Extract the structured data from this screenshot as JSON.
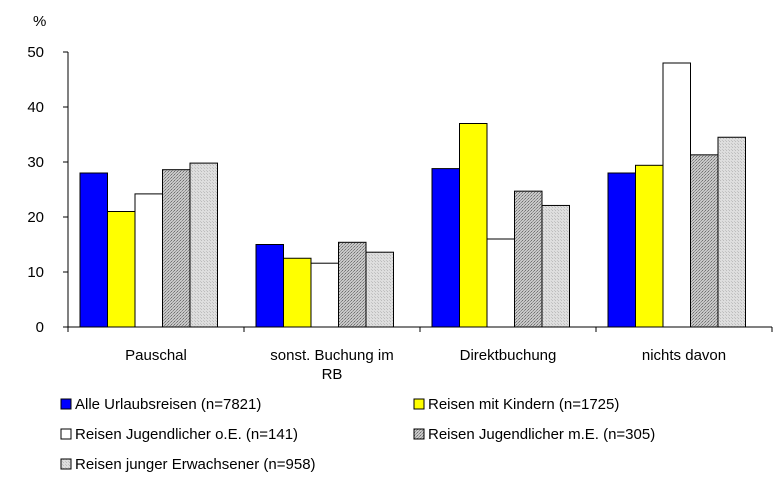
{
  "chart_data": {
    "type": "bar",
    "title": "",
    "xlabel": "",
    "ylabel": "%",
    "ylim": [
      0,
      50
    ],
    "yticks": [
      0,
      10,
      20,
      30,
      40,
      50
    ],
    "grid": false,
    "legend_position": "bottom",
    "categories": [
      [
        "Pauschal"
      ],
      [
        "sonst. Buchung im",
        "RB"
      ],
      [
        "Direktbuchung"
      ],
      [
        "nichts davon"
      ]
    ],
    "series": [
      {
        "name": "Alle Urlaubsreisen (n=7821)",
        "values": [
          28.0,
          15.0,
          28.8,
          28.0
        ],
        "color": "#0000ff",
        "pattern": "solid"
      },
      {
        "name": "Reisen mit Kindern (n=1725)",
        "values": [
          21.0,
          12.5,
          37.0,
          29.4
        ],
        "color": "#ffff00",
        "pattern": "solid"
      },
      {
        "name": "Reisen Jugendlicher o.E. (n=141)",
        "values": [
          24.2,
          11.6,
          16.0,
          48.0
        ],
        "color": "#ffffff",
        "pattern": "solid"
      },
      {
        "name": "Reisen Jugendlicher m.E. (n=305)",
        "values": [
          28.6,
          15.4,
          24.7,
          31.3
        ],
        "color": "#b0b0b0",
        "pattern": "dots"
      },
      {
        "name": "Reisen junger Erwachsener (n=958)",
        "values": [
          29.8,
          13.6,
          22.1,
          34.5
        ],
        "color": "#d3d3d3",
        "pattern": "light"
      }
    ]
  }
}
